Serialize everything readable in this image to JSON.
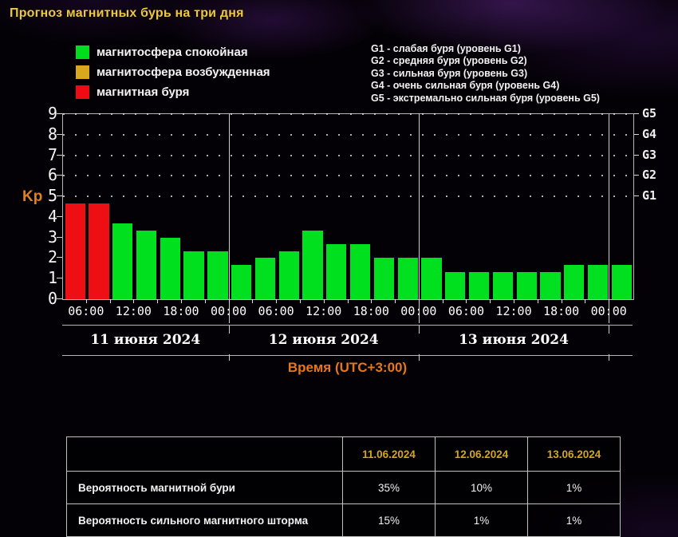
{
  "title": "Прогноз магнитных бурь на три дня",
  "legend": {
    "items": [
      {
        "label": "магнитосфера спокойная",
        "color": "#00dd1c",
        "state": "quiet"
      },
      {
        "label": "магнитосфера возбужденная",
        "color": "#d8a81c",
        "state": "excited"
      },
      {
        "label": "магнитная буря",
        "color": "#f00a14",
        "state": "storm"
      }
    ]
  },
  "storm_levels": [
    "G1 - слабая буря (уровень G1)",
    "G2 - средняя буря (уровень G2)",
    "G3 - сильная буря (уровень G3)",
    "G4 - очень сильная буря (уровень G4)",
    "G5 - экстремально сильная буря (уровень G5)"
  ],
  "chart_data": {
    "type": "bar",
    "ylabel": "Kp",
    "xlabel": "Время (UTC+3:00)",
    "ylim": [
      0,
      9
    ],
    "yticks": [
      0,
      1,
      2,
      3,
      4,
      5,
      6,
      7,
      8,
      9
    ],
    "grid_dotted_levels": [
      5,
      6,
      7,
      8,
      9
    ],
    "right_axis_labels": [
      {
        "label": "G1",
        "value": 5
      },
      {
        "label": "G2",
        "value": 6
      },
      {
        "label": "G3",
        "value": 7
      },
      {
        "label": "G4",
        "value": 8
      },
      {
        "label": "G5",
        "value": 9
      }
    ],
    "colors": {
      "quiet": "#00e01e",
      "excited": "#d8a81c",
      "storm": "#ee0f14"
    },
    "hours_total": 72,
    "bar_hours": 3,
    "time_tick_labels": [
      "06:00",
      "12:00",
      "18:00",
      "00:00"
    ],
    "first_label_hour": 3,
    "label_step_hours": 6,
    "day_divider_hours": [
      21,
      45,
      69
    ],
    "days": [
      {
        "label": "11 июня 2024",
        "center_hour": 10.5
      },
      {
        "label": "12 июня 2024",
        "center_hour": 33
      },
      {
        "label": "13 июня 2024",
        "center_hour": 57
      }
    ],
    "bars": [
      {
        "kp": 4.67,
        "state": "storm"
      },
      {
        "kp": 4.67,
        "state": "storm"
      },
      {
        "kp": 3.67,
        "state": "quiet"
      },
      {
        "kp": 3.33,
        "state": "quiet"
      },
      {
        "kp": 3.0,
        "state": "quiet"
      },
      {
        "kp": 2.33,
        "state": "quiet"
      },
      {
        "kp": 2.33,
        "state": "quiet"
      },
      {
        "kp": 1.67,
        "state": "quiet"
      },
      {
        "kp": 2.0,
        "state": "quiet"
      },
      {
        "kp": 2.33,
        "state": "quiet"
      },
      {
        "kp": 3.33,
        "state": "quiet"
      },
      {
        "kp": 2.67,
        "state": "quiet"
      },
      {
        "kp": 2.67,
        "state": "quiet"
      },
      {
        "kp": 2.0,
        "state": "quiet"
      },
      {
        "kp": 2.0,
        "state": "quiet"
      },
      {
        "kp": 2.0,
        "state": "quiet"
      },
      {
        "kp": 1.33,
        "state": "quiet"
      },
      {
        "kp": 1.33,
        "state": "quiet"
      },
      {
        "kp": 1.33,
        "state": "quiet"
      },
      {
        "kp": 1.33,
        "state": "quiet"
      },
      {
        "kp": 1.33,
        "state": "quiet"
      },
      {
        "kp": 1.67,
        "state": "quiet"
      },
      {
        "kp": 1.67,
        "state": "quiet"
      },
      {
        "kp": 1.67,
        "state": "quiet"
      }
    ]
  },
  "table": {
    "date_headers": [
      "11.06.2024",
      "12.06.2024",
      "13.06.2024"
    ],
    "rows": [
      {
        "label": "Вероятность магнитной бури",
        "values": [
          "35%",
          "10%",
          "1%"
        ]
      },
      {
        "label": "Вероятность сильного магнитного шторма",
        "values": [
          "15%",
          "1%",
          "1%"
        ]
      }
    ]
  }
}
